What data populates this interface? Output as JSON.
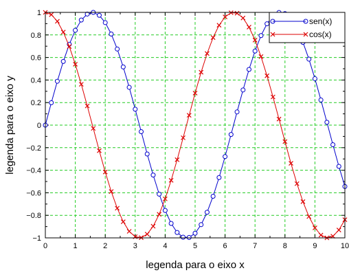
{
  "chart_data": {
    "type": "line",
    "xlabel": "legenda para o eixo x",
    "ylabel": "legenda para o eixo y",
    "xlim": [
      0,
      10
    ],
    "ylim": [
      -1,
      1
    ],
    "xticks": [
      "0",
      "1",
      "2",
      "3",
      "4",
      "5",
      "6",
      "7",
      "8",
      "9",
      "10"
    ],
    "yticks": [
      "−1",
      "−0.8",
      "−0.6",
      "−0.4",
      "−0.2",
      "0",
      "0.2",
      "0.4",
      "0.6",
      "0.8",
      "1"
    ],
    "grid": true,
    "legend_position": "top-right",
    "x": [
      0,
      0.2,
      0.4,
      0.6,
      0.8,
      1.0,
      1.2,
      1.4,
      1.6,
      1.8,
      2.0,
      2.2,
      2.4,
      2.6,
      2.8,
      3.0,
      3.2,
      3.4,
      3.6,
      3.8,
      4.0,
      4.2,
      4.4,
      4.6,
      4.8,
      5.0,
      5.2,
      5.4,
      5.6,
      5.8,
      6.0,
      6.2,
      6.4,
      6.6,
      6.8,
      7.0,
      7.2,
      7.4,
      7.6,
      7.8,
      8.0,
      8.2,
      8.4,
      8.6,
      8.8,
      9.0,
      9.2,
      9.4,
      9.6,
      9.8,
      10.0
    ],
    "series": [
      {
        "name": "sen(x)",
        "color": "#0000cc",
        "marker": "circle",
        "values": [
          0,
          0.199,
          0.389,
          0.565,
          0.717,
          0.841,
          0.932,
          0.985,
          1.0,
          0.974,
          0.909,
          0.808,
          0.675,
          0.516,
          0.335,
          0.141,
          -0.058,
          -0.256,
          -0.443,
          -0.612,
          -0.757,
          -0.872,
          -0.952,
          -0.994,
          -0.996,
          -0.959,
          -0.883,
          -0.773,
          -0.631,
          -0.465,
          -0.279,
          -0.083,
          0.117,
          0.312,
          0.494,
          0.657,
          0.794,
          0.899,
          0.968,
          0.999,
          0.989,
          0.941,
          0.855,
          0.734,
          0.585,
          0.412,
          0.223,
          0.025,
          -0.174,
          -0.366,
          -0.544
        ]
      },
      {
        "name": "cos(x)",
        "color": "#dd0000",
        "marker": "x",
        "values": [
          1.0,
          0.98,
          0.921,
          0.825,
          0.697,
          0.54,
          0.362,
          0.17,
          -0.029,
          -0.227,
          -0.416,
          -0.589,
          -0.737,
          -0.857,
          -0.942,
          -0.99,
          -0.998,
          -0.967,
          -0.897,
          -0.791,
          -0.654,
          -0.49,
          -0.307,
          -0.112,
          0.087,
          0.284,
          0.469,
          0.635,
          0.776,
          0.886,
          0.96,
          0.997,
          0.993,
          0.95,
          0.869,
          0.754,
          0.608,
          0.438,
          0.25,
          0.054,
          -0.146,
          -0.339,
          -0.519,
          -0.679,
          -0.811,
          -0.911,
          -0.975,
          -1.0,
          -0.985,
          -0.93,
          -0.839
        ]
      }
    ]
  }
}
